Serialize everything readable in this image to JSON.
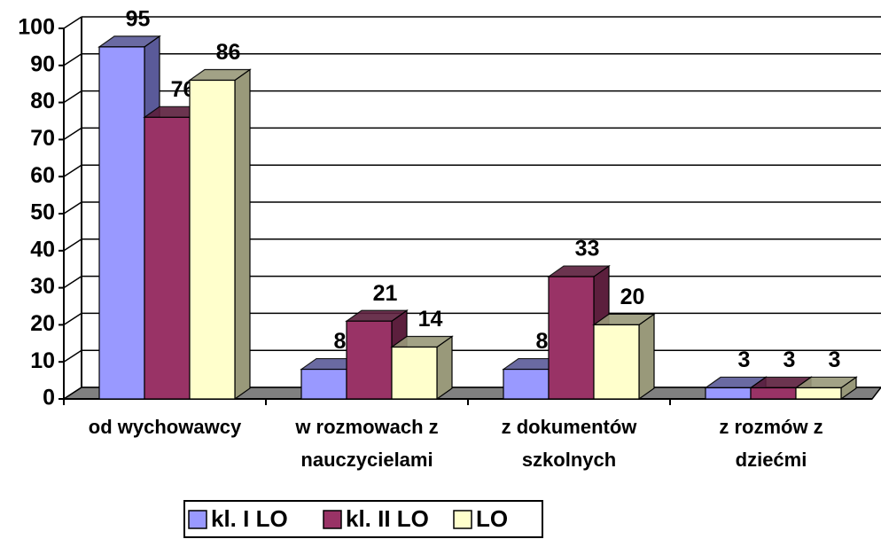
{
  "chart_data": {
    "type": "bar3d",
    "categories": [
      "od wychowawcy",
      "w rozmowach z\nnauczycielami",
      "z dokumentów\nszkolnych",
      "z rozmów z\ndziećmi"
    ],
    "series": [
      {
        "name": "kl. I LO",
        "color": "#9999ff",
        "side": "#5a5a99",
        "values": [
          95,
          8,
          8,
          3
        ]
      },
      {
        "name": "kl. II LO",
        "color": "#993366",
        "side": "#5c1f3d",
        "values": [
          76,
          21,
          33,
          3
        ]
      },
      {
        "name": "LO",
        "color": "#ffffcc",
        "side": "#99997a",
        "values": [
          86,
          14,
          20,
          3
        ]
      }
    ],
    "ylim": [
      0,
      100
    ],
    "yticks": [
      0,
      10,
      20,
      30,
      40,
      50,
      60,
      70,
      80,
      90,
      100
    ],
    "grid": true,
    "legend": "bottom"
  }
}
